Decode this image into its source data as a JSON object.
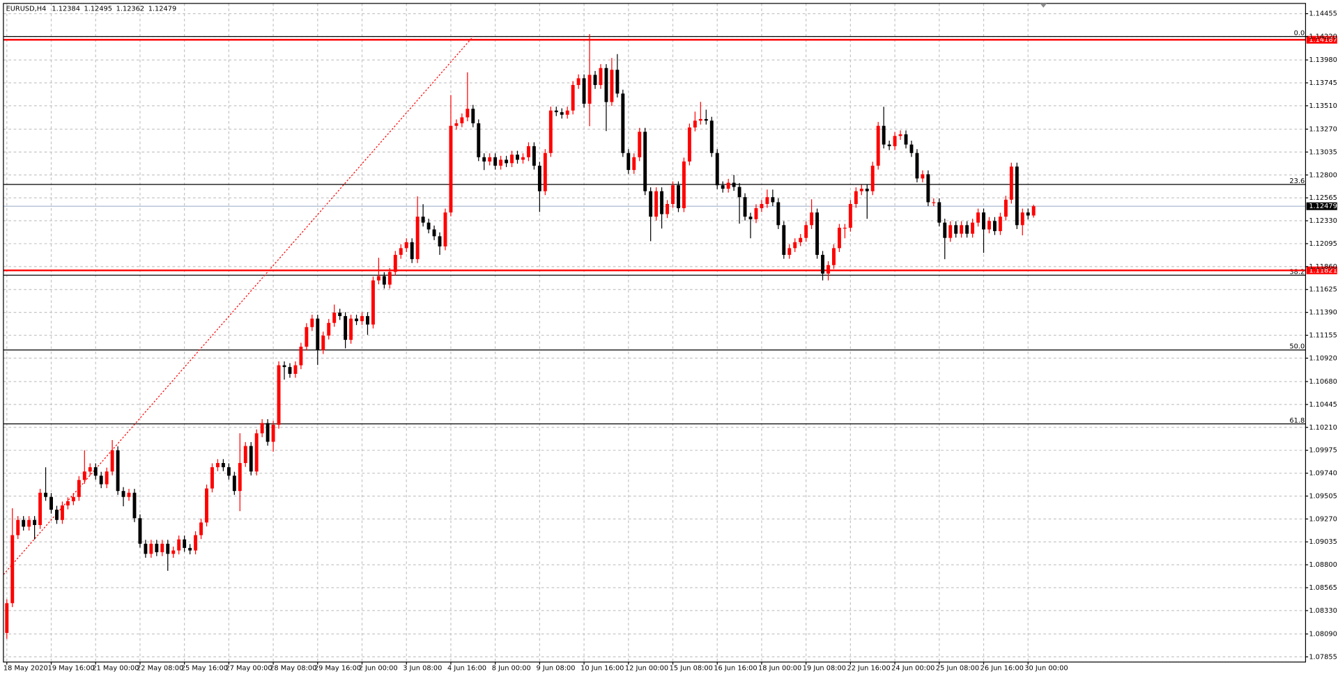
{
  "chart_data": {
    "type": "candlestick",
    "title": "EURUSD,H4",
    "up_color": "#ff0000",
    "down_color": "#000000",
    "grid": true,
    "grid_color": "#c4c4c4",
    "ylim": [
      1.07802,
      1.1456
    ],
    "yticks": [
      1.14455,
      {
        "value": 1.1422,
        "label": "1.14220"
      },
      {
        "value": 1.1398,
        "label": "1.13980"
      },
      1.13745,
      {
        "value": 1.1351,
        "label": "1.13510"
      },
      {
        "value": 1.1327,
        "label": "1.13270"
      },
      1.13035,
      {
        "value": 1.128,
        "label": "1.12800"
      },
      1.12565,
      {
        "value": 1.1233,
        "label": "1.12330"
      },
      1.12095,
      {
        "value": 1.1186,
        "label": "1.11860"
      },
      1.11625,
      {
        "value": 1.1139,
        "label": "1.11390"
      },
      1.11155,
      {
        "value": 1.1092,
        "label": "1.10920"
      },
      {
        "value": 1.1068,
        "label": "1.10680"
      },
      1.10445,
      {
        "value": 1.1021,
        "label": "1.10210"
      },
      1.09975,
      {
        "value": 1.0974,
        "label": "1.09740"
      },
      1.09505,
      {
        "value": 1.0927,
        "label": "1.09270"
      },
      1.09035,
      {
        "value": 1.088,
        "label": "1.08800"
      },
      1.08565,
      {
        "value": 1.0833,
        "label": "1.08330"
      },
      {
        "value": 1.0809,
        "label": "1.08090"
      },
      1.07855
    ],
    "hlines": [
      {
        "value": 1.14187,
        "color": "#ff0000"
      },
      {
        "value": 1.11821,
        "color": "#ff0000"
      }
    ],
    "price_line_color": "#9fb2cc",
    "fibo_color": "#000000",
    "fibo_levels": [
      {
        "value": 1.1422,
        "label": "0.0"
      },
      {
        "value": 1.12703,
        "label": "23.6"
      },
      {
        "value": 1.11771,
        "label": "38.2"
      },
      {
        "value": 1.11004,
        "label": "50.0"
      },
      {
        "value": 1.10246,
        "label": "61.8"
      }
    ],
    "trendline": {
      "x": [
        -0.6,
        84
      ],
      "y": [
        1.087,
        1.1422
      ],
      "color": "#ff0000"
    },
    "categories": [
      "18 May 2020",
      null,
      null,
      null,
      null,
      null,
      null,
      null,
      "19 May 16:00",
      null,
      null,
      null,
      null,
      null,
      null,
      null,
      "21 May 00:00",
      null,
      null,
      null,
      null,
      null,
      null,
      null,
      "22 May 08:00",
      null,
      null,
      null,
      null,
      null,
      null,
      null,
      "25 May 16:00",
      null,
      null,
      null,
      null,
      null,
      null,
      null,
      "27 May 00:00",
      null,
      null,
      null,
      null,
      null,
      null,
      null,
      "28 May 08:00",
      null,
      null,
      null,
      null,
      null,
      null,
      null,
      "29 May 16:00",
      null,
      null,
      null,
      null,
      null,
      null,
      null,
      "2 Jun 00:00",
      null,
      null,
      null,
      null,
      null,
      null,
      null,
      "3 Jun 08:00",
      null,
      null,
      null,
      null,
      null,
      null,
      null,
      "4 Jun 16:00",
      null,
      null,
      null,
      null,
      null,
      null,
      null,
      "8 Jun 00:00",
      null,
      null,
      null,
      null,
      null,
      null,
      null,
      "9 Jun 08:00",
      null,
      null,
      null,
      null,
      null,
      null,
      null,
      "10 Jun 16:00",
      null,
      null,
      null,
      null,
      null,
      null,
      null,
      "12 Jun 00:00",
      null,
      null,
      null,
      null,
      null,
      null,
      null,
      "15 Jun 08:00",
      null,
      null,
      null,
      null,
      null,
      null,
      null,
      "16 Jun 16:00",
      null,
      null,
      null,
      null,
      null,
      null,
      null,
      "18 Jun 00:00",
      null,
      null,
      null,
      null,
      null,
      null,
      null,
      "19 Jun 08:00",
      null,
      null,
      null,
      null,
      null,
      null,
      null,
      "22 Jun 16:00",
      null,
      null,
      null,
      null,
      null,
      null,
      null,
      "24 Jun 00:00",
      null,
      null,
      null,
      null,
      null,
      null,
      null,
      "25 Jun 08:00",
      null,
      null,
      null,
      null,
      null,
      null,
      null,
      "26 Jun 16:00",
      null,
      null,
      null,
      null,
      null,
      null,
      null,
      "30 Jun 00:00",
      null
    ],
    "open": [
      1.08101,
      1.08406,
      1.09104,
      1.0926,
      1.09191,
      1.0926,
      1.09208,
      1.09539,
      1.09496,
      1.09365,
      1.0926,
      1.09409,
      1.09452,
      1.09496,
      1.0967,
      1.09757,
      1.09801,
      1.09714,
      1.09626,
      1.09757,
      1.09975,
      1.09557,
      1.09496,
      1.09539,
      1.09278,
      1.09016,
      1.08912,
      1.09016,
      1.08929,
      1.09016,
      1.08912,
      1.08947,
      1.0906,
      1.08973,
      1.08947,
      1.09104,
      1.09234,
      1.09583,
      1.09801,
      1.09844,
      1.09801,
      1.09714,
      1.09557,
      1.09844,
      1.10019,
      1.09757,
      1.10149,
      1.10254,
      1.10062,
      1.10237,
      1.10847,
      1.10829,
      1.10759,
      1.10847,
      1.11038,
      1.11239,
      1.11326,
      1.11003,
      1.11152,
      1.11282,
      1.11387,
      1.11352,
      1.11108,
      1.11326,
      1.113,
      1.11352,
      1.11265,
      1.11718,
      1.11762,
      1.11675,
      1.11805,
      1.1198,
      1.12049,
      1.1211,
      1.11936,
      1.12372,
      1.12311,
      1.12241,
      1.12171,
      1.12067,
      1.12415,
      1.13304,
      1.1333,
      1.13391,
      1.13479,
      1.1333,
      1.12982,
      1.12938,
      1.12982,
      1.12895,
      1.12956,
      1.12921,
      1.13008,
      1.12956,
      1.12982,
      1.13095,
      1.12895,
      1.12633,
      1.13025,
      1.13461,
      1.13444,
      1.13418,
      1.13461,
      1.13723,
      1.13792,
      1.13531,
      1.13827,
      1.13723,
      1.13897,
      1.13548,
      1.13879,
      1.13635,
      1.13025,
      1.12851,
      1.12982,
      1.13243,
      1.12633,
      1.12372,
      1.12633,
      1.12398,
      1.12502,
      1.12694,
      1.12459,
      1.12938,
      1.13287,
      1.13357,
      1.13374,
      1.13357,
      1.13025,
      1.12694,
      1.12659,
      1.1272,
      1.12677,
      1.12572,
      1.12372,
      1.12346,
      1.12459,
      1.12502,
      1.12572,
      1.1252,
      1.12285,
      1.1198,
      1.12049,
      1.1211,
      1.12154,
      1.12285,
      1.12415,
      1.1198,
      1.11788,
      1.11875,
      1.12049,
      1.12258,
      1.12258,
      1.12502,
      1.12633,
      1.12659,
      1.12633,
      1.12895,
      1.13304,
      1.13112,
      1.13095,
      1.132,
      1.13217,
      1.13112,
      1.13025,
      1.12764,
      1.12807,
      1.1252,
      1.1252,
      1.12311,
      1.12154,
      1.12285,
      1.12197,
      1.12285,
      1.12197,
      1.12311,
      1.12415,
      1.12241,
      1.12328,
      1.12224,
      1.12372,
      1.12546,
      1.12886,
      1.12285,
      1.12415,
      1.12384
    ],
    "high": [
      1.08446,
      1.0938,
      1.093,
      1.093,
      1.093,
      1.093,
      1.09579,
      1.098,
      1.09536,
      1.09405,
      1.09449,
      1.09492,
      1.09536,
      1.0971,
      1.09975,
      1.09841,
      1.09841,
      1.09754,
      1.09797,
      1.1008,
      1.10015,
      1.09597,
      1.09579,
      1.09579,
      1.09318,
      1.09056,
      1.09056,
      1.09056,
      1.09056,
      1.09056,
      1.08987,
      1.091,
      1.091,
      1.09013,
      1.09144,
      1.09274,
      1.09623,
      1.09841,
      1.09884,
      1.09884,
      1.09841,
      1.09754,
      1.1015,
      1.10059,
      1.10059,
      1.10189,
      1.10294,
      1.10294,
      1.10277,
      1.10887,
      1.10887,
      1.10869,
      1.10887,
      1.11078,
      1.11279,
      1.11366,
      1.11366,
      1.11192,
      1.11322,
      1.1147,
      1.11427,
      1.11392,
      1.11366,
      1.11366,
      1.11392,
      1.11392,
      1.11758,
      1.1195,
      1.11802,
      1.11845,
      1.1202,
      1.12089,
      1.1215,
      1.1215,
      1.1258,
      1.125,
      1.12351,
      1.12281,
      1.12211,
      1.12455,
      1.1362,
      1.1337,
      1.13431,
      1.13853,
      1.13519,
      1.1337,
      1.13022,
      1.13022,
      1.13022,
      1.12996,
      1.12996,
      1.13048,
      1.13048,
      1.13022,
      1.13135,
      1.13135,
      1.12935,
      1.13065,
      1.13501,
      1.13501,
      1.13484,
      1.13501,
      1.13763,
      1.13832,
      1.13832,
      1.14245,
      1.13867,
      1.13937,
      1.13937,
      1.14,
      1.1404,
      1.13675,
      1.13065,
      1.13022,
      1.13283,
      1.13283,
      1.12673,
      1.12673,
      1.12673,
      1.12542,
      1.12734,
      1.12734,
      1.12978,
      1.13327,
      1.1345,
      1.1355,
      1.1347,
      1.13397,
      1.13065,
      1.12734,
      1.1276,
      1.128,
      1.12717,
      1.12612,
      1.12412,
      1.12499,
      1.12542,
      1.1265,
      1.1265,
      1.1256,
      1.12325,
      1.12089,
      1.1215,
      1.12194,
      1.12325,
      1.1255,
      1.12455,
      1.1202,
      1.11915,
      1.12089,
      1.12298,
      1.12298,
      1.12542,
      1.12673,
      1.12699,
      1.12699,
      1.12935,
      1.13344,
      1.135,
      1.13152,
      1.1324,
      1.13257,
      1.13257,
      1.13152,
      1.13065,
      1.12847,
      1.12847,
      1.1256,
      1.1256,
      1.12351,
      1.12325,
      1.12325,
      1.12325,
      1.12325,
      1.12351,
      1.12455,
      1.12455,
      1.12368,
      1.12368,
      1.12412,
      1.12586,
      1.12926,
      1.12926,
      1.12455,
      1.12455,
      1.12495
    ],
    "low": [
      1.0804,
      1.08366,
      1.09064,
      1.09151,
      1.09151,
      1.0906,
      1.09168,
      1.09456,
      1.09325,
      1.0922,
      1.0922,
      1.09369,
      1.09412,
      1.09456,
      1.0963,
      1.09717,
      1.09674,
      1.09586,
      1.09586,
      1.09717,
      1.09517,
      1.094,
      1.09456,
      1.09238,
      1.08976,
      1.08872,
      1.08872,
      1.08889,
      1.08889,
      1.08738,
      1.08872,
      1.08907,
      1.08933,
      1.08907,
      1.08907,
      1.09064,
      1.09194,
      1.09543,
      1.09761,
      1.09761,
      1.09674,
      1.09517,
      1.0935,
      1.09804,
      1.09717,
      1.09717,
      1.10109,
      1.10022,
      1.0996,
      1.10197,
      1.107,
      1.10719,
      1.10719,
      1.10807,
      1.10998,
      1.11199,
      1.1085,
      1.10963,
      1.11112,
      1.11242,
      1.11312,
      1.1102,
      1.11068,
      1.1126,
      1.1126,
      1.1116,
      1.11225,
      1.11678,
      1.11635,
      1.11635,
      1.11765,
      1.1194,
      1.12009,
      1.11896,
      1.11896,
      1.12271,
      1.12201,
      1.12131,
      1.1198,
      1.12027,
      1.12375,
      1.13264,
      1.1329,
      1.13351,
      1.1329,
      1.12942,
      1.1285,
      1.12898,
      1.12855,
      1.12855,
      1.12881,
      1.12881,
      1.12916,
      1.12916,
      1.12942,
      1.12855,
      1.1242,
      1.12593,
      1.12985,
      1.13404,
      1.13378,
      1.13378,
      1.13421,
      1.13683,
      1.13491,
      1.133,
      1.13683,
      1.13683,
      1.1325,
      1.13508,
      1.13595,
      1.12985,
      1.12811,
      1.12811,
      1.12942,
      1.12593,
      1.1212,
      1.12332,
      1.1225,
      1.12358,
      1.12462,
      1.12419,
      1.12419,
      1.12898,
      1.13247,
      1.13317,
      1.13317,
      1.12985,
      1.12654,
      1.12619,
      1.12619,
      1.12637,
      1.123,
      1.12332,
      1.1215,
      1.12306,
      1.12419,
      1.12462,
      1.1248,
      1.12245,
      1.1194,
      1.1194,
      1.12009,
      1.1207,
      1.12114,
      1.12245,
      1.1194,
      1.11718,
      1.11718,
      1.11835,
      1.12009,
      1.1215,
      1.12218,
      1.12462,
      1.12593,
      1.1235,
      1.12593,
      1.12855,
      1.13072,
      1.13055,
      1.13055,
      1.1316,
      1.13072,
      1.12985,
      1.12724,
      1.12724,
      1.1248,
      1.1248,
      1.12271,
      1.11936,
      1.12114,
      1.12157,
      1.12157,
      1.12157,
      1.12157,
      1.12271,
      1.12,
      1.12201,
      1.12184,
      1.12184,
      1.12332,
      1.12506,
      1.12245,
      1.1218,
      1.12344,
      1.12362
    ],
    "close": [
      1.08406,
      1.09104,
      1.0926,
      1.09191,
      1.0926,
      1.09208,
      1.09539,
      1.09496,
      1.09365,
      1.0926,
      1.09409,
      1.09452,
      1.09496,
      1.0967,
      1.09757,
      1.09801,
      1.09714,
      1.09626,
      1.09757,
      1.09975,
      1.09557,
      1.09496,
      1.09539,
      1.09278,
      1.09016,
      1.08912,
      1.09016,
      1.08929,
      1.09016,
      1.08912,
      1.08947,
      1.0906,
      1.08973,
      1.08947,
      1.09104,
      1.09234,
      1.09583,
      1.09801,
      1.09844,
      1.09801,
      1.09714,
      1.09557,
      1.09844,
      1.10019,
      1.09757,
      1.10149,
      1.10254,
      1.10062,
      1.10237,
      1.10847,
      1.10829,
      1.10759,
      1.10847,
      1.11038,
      1.11239,
      1.11326,
      1.11003,
      1.11152,
      1.11282,
      1.11387,
      1.11352,
      1.11108,
      1.11326,
      1.113,
      1.11352,
      1.11265,
      1.11718,
      1.11762,
      1.11675,
      1.11805,
      1.1198,
      1.12049,
      1.1211,
      1.11936,
      1.12372,
      1.12311,
      1.12241,
      1.12171,
      1.12067,
      1.12415,
      1.13304,
      1.1333,
      1.13391,
      1.13479,
      1.1333,
      1.12982,
      1.12938,
      1.12982,
      1.12895,
      1.12956,
      1.12921,
      1.13008,
      1.12956,
      1.12982,
      1.13095,
      1.12895,
      1.12633,
      1.13025,
      1.13461,
      1.13444,
      1.13418,
      1.13461,
      1.13723,
      1.13792,
      1.13531,
      1.13827,
      1.13723,
      1.13897,
      1.13548,
      1.13879,
      1.13635,
      1.13025,
      1.12851,
      1.12982,
      1.13243,
      1.12633,
      1.12372,
      1.12633,
      1.12398,
      1.12502,
      1.12694,
      1.12459,
      1.12938,
      1.13287,
      1.13357,
      1.13374,
      1.13357,
      1.13025,
      1.12694,
      1.12659,
      1.1272,
      1.12677,
      1.12572,
      1.12372,
      1.12346,
      1.12459,
      1.12502,
      1.12572,
      1.1252,
      1.12285,
      1.1198,
      1.12049,
      1.1211,
      1.12154,
      1.12285,
      1.12415,
      1.1198,
      1.11788,
      1.11875,
      1.12049,
      1.12258,
      1.12258,
      1.12502,
      1.12633,
      1.12659,
      1.12633,
      1.12895,
      1.13304,
      1.13112,
      1.13095,
      1.132,
      1.13217,
      1.13112,
      1.13025,
      1.12764,
      1.12807,
      1.1252,
      1.1252,
      1.12311,
      1.12154,
      1.12285,
      1.12197,
      1.12285,
      1.12197,
      1.12311,
      1.12415,
      1.12241,
      1.12328,
      1.12224,
      1.12372,
      1.12546,
      1.12886,
      1.12285,
      1.12415,
      1.12384,
      1.12479
    ]
  }
}
